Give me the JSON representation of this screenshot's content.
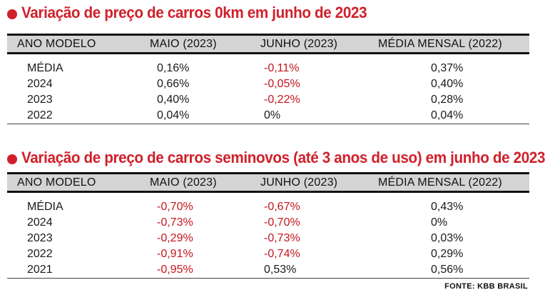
{
  "section1": {
    "title": "Variação de preço de carros 0km em junho de 2023",
    "headers": [
      "ANO MODELO",
      "MAIO (2023)",
      "JUNHO (2023)",
      "MÉDIA MENSAL (2022)"
    ],
    "rows": [
      {
        "ano": "MÉDIA",
        "maio": "0,16%",
        "junho": "-0,11%",
        "media": "0,37%"
      },
      {
        "ano": "2024",
        "maio": "0,66%",
        "junho": "-0,05%",
        "media": "0,40%"
      },
      {
        "ano": "2023",
        "maio": "0,40%",
        "junho": "-0,22%",
        "media": "0,28%"
      },
      {
        "ano": "2022",
        "maio": "0,04%",
        "junho": "0%",
        "media": "0,04%"
      }
    ]
  },
  "section2": {
    "title": "Variação de preço de carros seminovos (até 3 anos de uso) em junho de 2023",
    "headers": [
      "ANO MODELO",
      "MAIO (2023)",
      "JUNHO (2023)",
      "MÉDIA MENSAL (2022)"
    ],
    "rows": [
      {
        "ano": "MÉDIA",
        "maio": "-0,70%",
        "junho": "-0,67%",
        "media": "0,43%"
      },
      {
        "ano": "2024",
        "maio": "-0,73%",
        "junho": "-0,70%",
        "media": "0%"
      },
      {
        "ano": "2023",
        "maio": "-0,29%",
        "junho": "-0,73%",
        "media": "0,03%"
      },
      {
        "ano": "2022",
        "maio": "-0,91%",
        "junho": "-0,74%",
        "media": "0,29%"
      },
      {
        "ano": "2021",
        "maio": "-0,95%",
        "junho": "0,53%",
        "media": "0,56%"
      }
    ]
  },
  "source": "FONTE: KBB BRASIL",
  "colors": {
    "accent": "#d0202a",
    "negative": "#c4151c",
    "header_bg": "#d4d4d4",
    "text": "#1a1a1a"
  },
  "icons": {
    "bullet": "red-circle-bullet-icon"
  }
}
